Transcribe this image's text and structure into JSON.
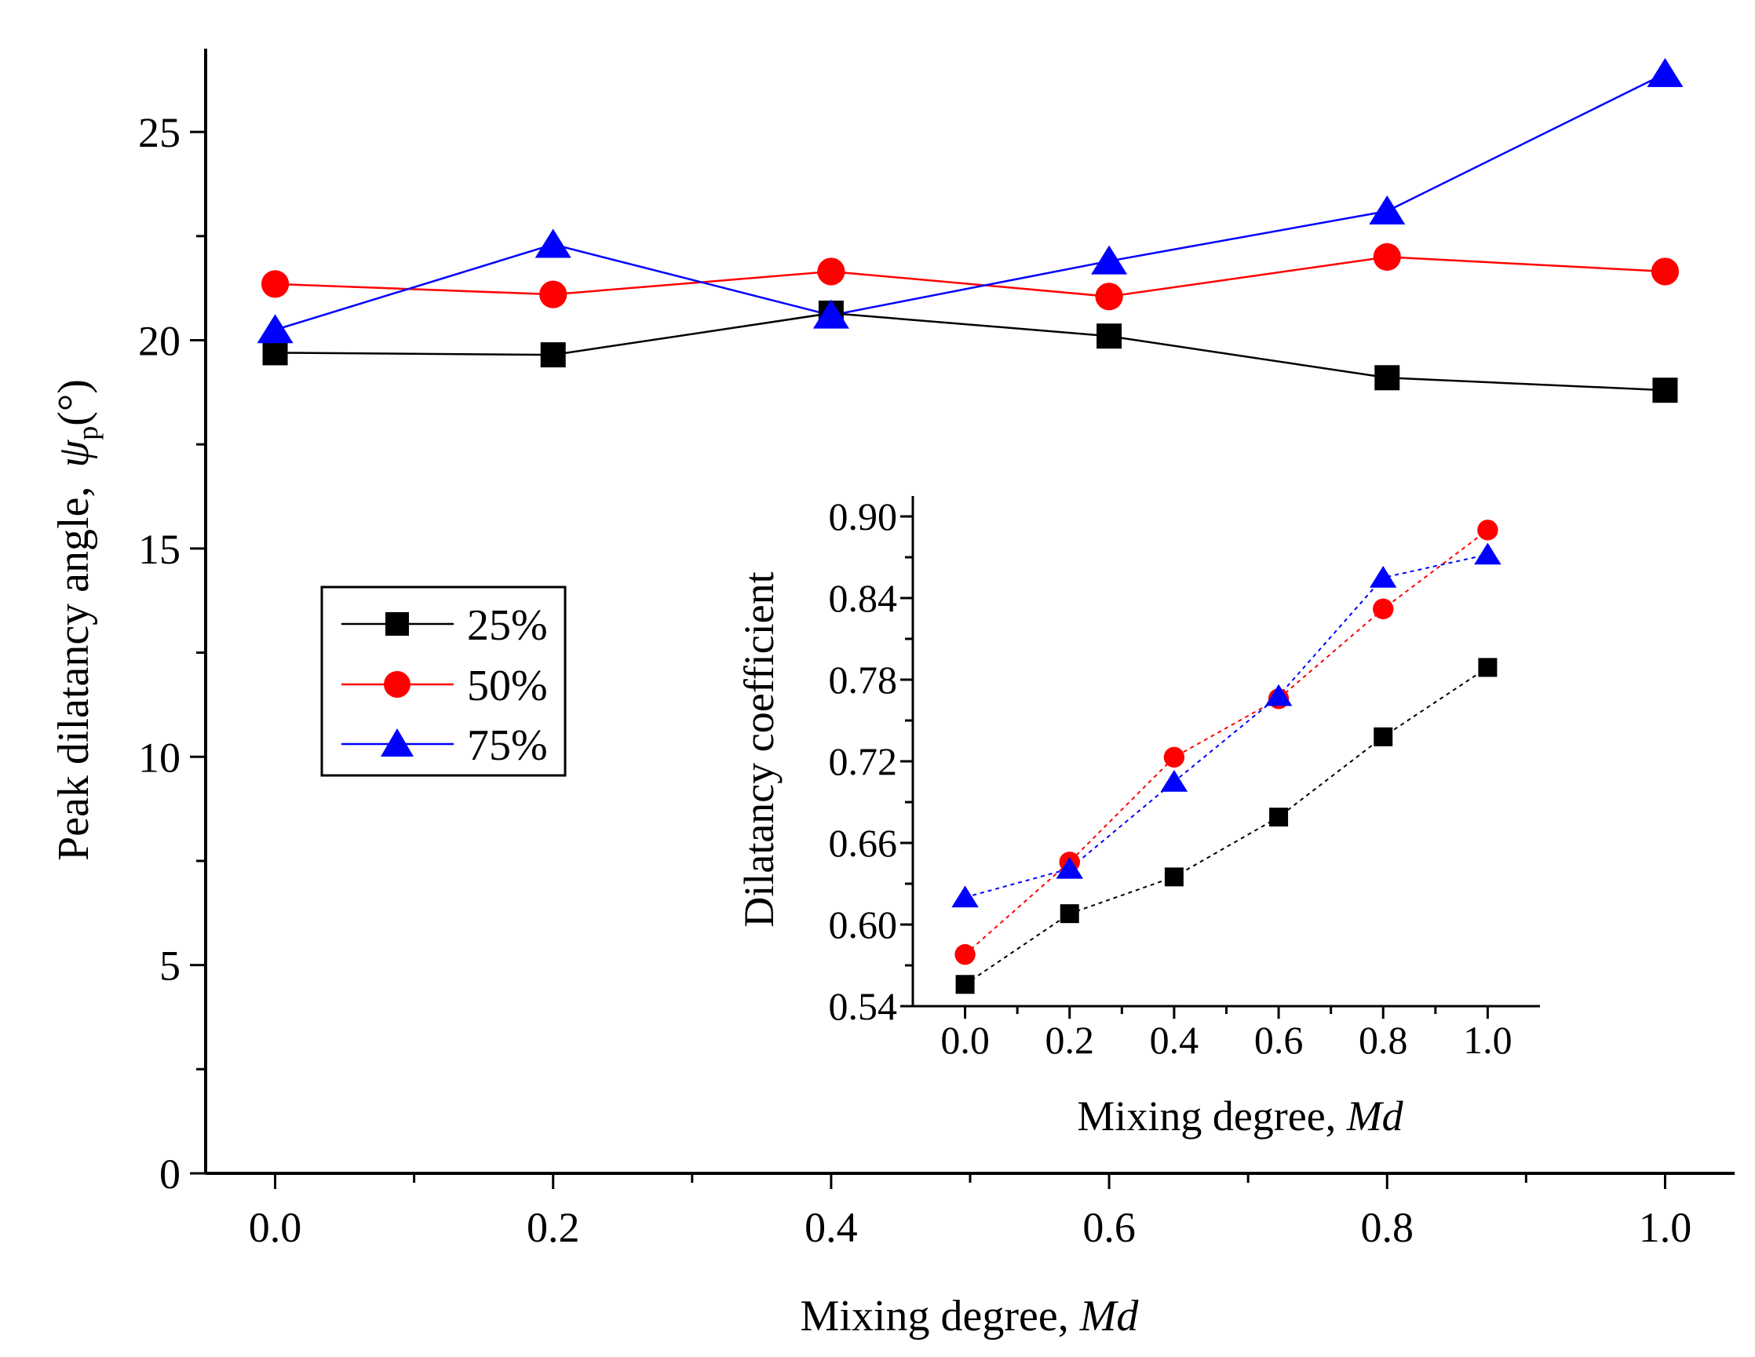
{
  "chart_data": [
    {
      "type": "line",
      "xlabel": "Mixing degree, ",
      "xlabel_italic": "Md",
      "ylabel": "Peak dilatancy angle,",
      "ylabel_symbol": "ψ",
      "ylabel_subscript": "p",
      "ylabel_unit": "(°)",
      "xlim": [
        -0.05,
        1.05
      ],
      "ylim": [
        0,
        27
      ],
      "x_ticks": [
        0.0,
        0.2,
        0.4,
        0.6,
        0.8,
        1.0
      ],
      "x_tick_labels": [
        "0.0",
        "0.2",
        "0.4",
        "0.6",
        "0.8",
        "1.0"
      ],
      "y_ticks": [
        0,
        5,
        10,
        15,
        20,
        25
      ],
      "y_tick_labels": [
        "0",
        "5",
        "10",
        "15",
        "20",
        "25"
      ],
      "legend_position": "middle-left",
      "x": [
        0.0,
        0.2,
        0.4,
        0.6,
        0.8,
        1.0
      ],
      "series": [
        {
          "name": "25%",
          "color": "#000000",
          "marker": "square",
          "line": "solid",
          "values": [
            19.7,
            19.65,
            20.65,
            20.1,
            19.1,
            18.8
          ]
        },
        {
          "name": "50%",
          "color": "#ff0000",
          "marker": "circle",
          "line": "solid",
          "values": [
            21.35,
            21.1,
            21.65,
            21.05,
            22.0,
            21.65
          ]
        },
        {
          "name": "75%",
          "color": "#0000ff",
          "marker": "triangle",
          "line": "solid",
          "values": [
            20.25,
            22.3,
            20.6,
            21.9,
            23.1,
            26.4
          ]
        }
      ]
    },
    {
      "type": "line",
      "xlabel": "Mixing degree, ",
      "xlabel_italic": "Md",
      "ylabel": "Dilatancy coefficient",
      "xlim": [
        -0.1,
        1.1
      ],
      "ylim": [
        0.54,
        0.915
      ],
      "x_ticks": [
        0.0,
        0.2,
        0.4,
        0.6,
        0.8,
        1.0
      ],
      "x_tick_labels": [
        "0.0",
        "0.2",
        "0.4",
        "0.6",
        "0.8",
        "1.0"
      ],
      "y_ticks": [
        0.54,
        0.6,
        0.66,
        0.72,
        0.78,
        0.84,
        0.9
      ],
      "y_tick_labels": [
        "0.54",
        "0.60",
        "0.66",
        "0.72",
        "0.78",
        "0.84",
        "0.90"
      ],
      "x": [
        0.0,
        0.2,
        0.4,
        0.6,
        0.8,
        1.0
      ],
      "series": [
        {
          "name": "25%",
          "color": "#000000",
          "marker": "square",
          "line": "dotted",
          "values": [
            0.556,
            0.608,
            0.635,
            0.679,
            0.738,
            0.789
          ]
        },
        {
          "name": "50%",
          "color": "#ff0000",
          "marker": "circle",
          "line": "dotted",
          "values": [
            0.578,
            0.646,
            0.723,
            0.766,
            0.832,
            0.89
          ]
        },
        {
          "name": "75%",
          "color": "#0000ff",
          "marker": "triangle",
          "line": "dotted",
          "values": [
            0.62,
            0.641,
            0.705,
            0.768,
            0.855,
            0.872
          ]
        }
      ]
    }
  ]
}
